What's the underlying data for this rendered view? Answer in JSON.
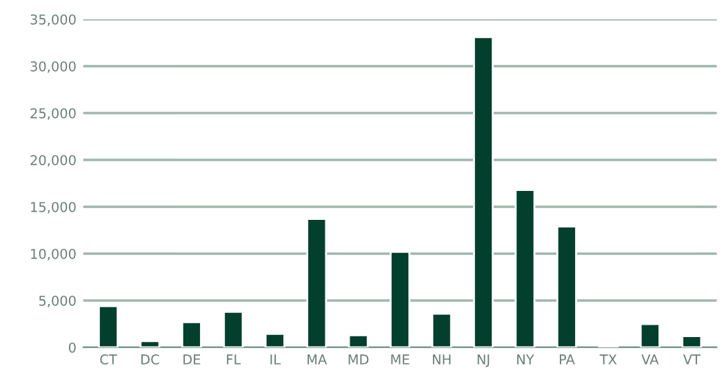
{
  "chart_data": {
    "type": "bar",
    "categories": [
      "CT",
      "DC",
      "DE",
      "FL",
      "IL",
      "MA",
      "MD",
      "ME",
      "NH",
      "NJ",
      "NY",
      "PA",
      "TX",
      "VA",
      "VT"
    ],
    "values": [
      4400,
      670,
      2700,
      3800,
      1450,
      13700,
      1300,
      10200,
      3600,
      33100,
      16800,
      12900,
      200,
      2500,
      1200
    ],
    "color": "#023f2d",
    "ylim": [
      0,
      35000
    ],
    "yticks": [
      {
        "value": 0,
        "label": "0"
      },
      {
        "value": 5000,
        "label": "5,000"
      },
      {
        "value": 10000,
        "label": "10,000"
      },
      {
        "value": 15000,
        "label": "15,000"
      },
      {
        "value": 20000,
        "label": "20,000"
      },
      {
        "value": 25000,
        "label": "25,000"
      },
      {
        "value": 30000,
        "label": "30,000"
      },
      {
        "value": 35000,
        "label": "35,000"
      }
    ],
    "grid": "y"
  }
}
